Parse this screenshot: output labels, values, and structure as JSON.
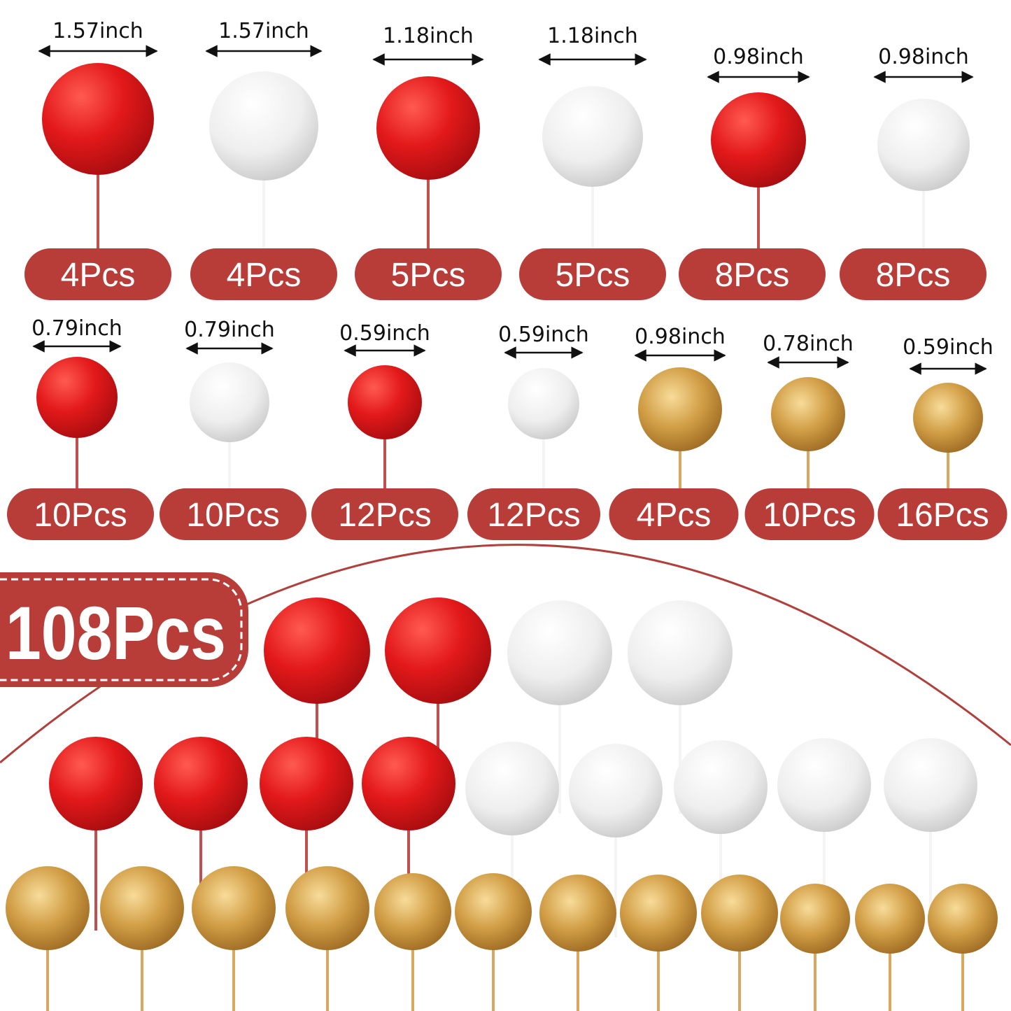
{
  "colors": {
    "badge": "#b83d38",
    "red": "#e01a1a",
    "white": "#f2f2f2",
    "gold": "#c8933a",
    "arc": "#b0403c"
  },
  "top_row": [
    {
      "size": "1.57inch",
      "count": "4Pcs",
      "color": "red"
    },
    {
      "size": "1.57inch",
      "count": "4Pcs",
      "color": "white"
    },
    {
      "size": "1.18inch",
      "count": "5Pcs",
      "color": "red"
    },
    {
      "size": "1.18inch",
      "count": "5Pcs",
      "color": "white"
    },
    {
      "size": "0.98inch",
      "count": "8Pcs",
      "color": "red"
    },
    {
      "size": "0.98inch",
      "count": "8Pcs",
      "color": "white"
    }
  ],
  "second_row": [
    {
      "size": "0.79inch",
      "count": "10Pcs",
      "color": "red"
    },
    {
      "size": "0.79inch",
      "count": "10Pcs",
      "color": "white"
    },
    {
      "size": "0.59inch",
      "count": "12Pcs",
      "color": "red"
    },
    {
      "size": "0.59inch",
      "count": "12Pcs",
      "color": "white"
    },
    {
      "size": "0.98inch",
      "count": "4Pcs",
      "color": "gold"
    },
    {
      "size": "0.78inch",
      "count": "10Pcs",
      "color": "gold"
    },
    {
      "size": "0.59inch",
      "count": "16Pcs",
      "color": "gold"
    }
  ],
  "total_badge": "108Pcs"
}
